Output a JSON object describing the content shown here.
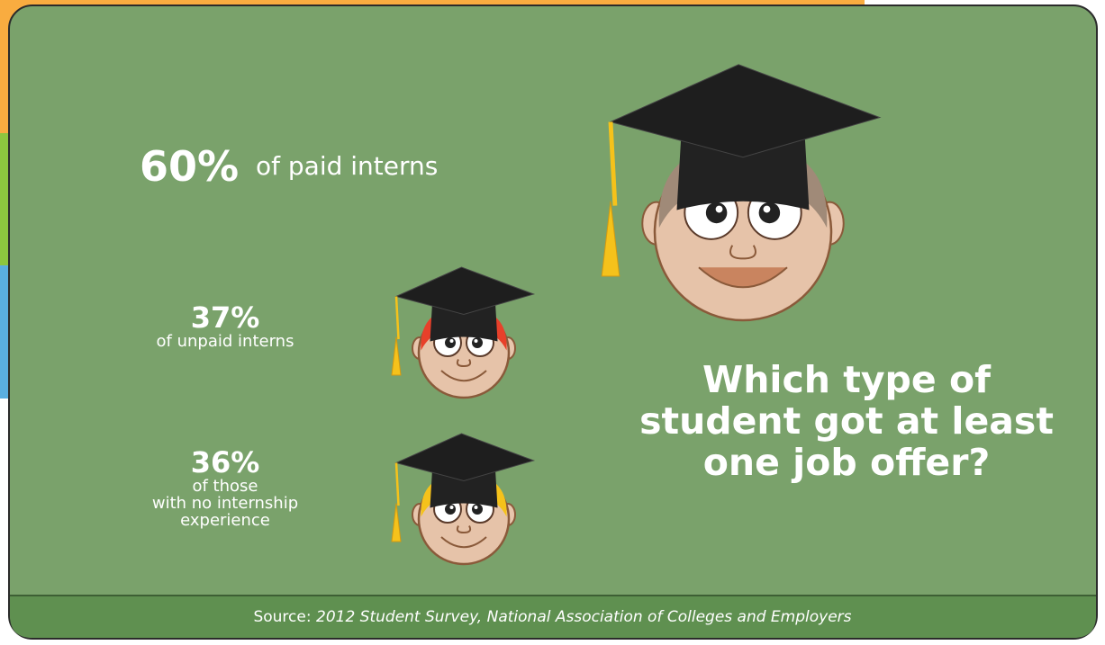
{
  "chart_data": {
    "type": "bar",
    "orientation": "horizontal",
    "title": "Which type of\nstudent got at least\none job offer?",
    "categories": [
      "of paid interns",
      "of unpaid interns",
      "of those\nwith no internship\nexperience"
    ],
    "values": [
      60,
      37,
      36
    ],
    "value_labels": [
      "60%",
      "37%",
      "36%"
    ],
    "colors": [
      "#f9ac40",
      "#8dc63f",
      "#5aaee0"
    ],
    "source_label": "Source:",
    "source": "2012 Student Survey, National Association of Colleges and Employers"
  }
}
